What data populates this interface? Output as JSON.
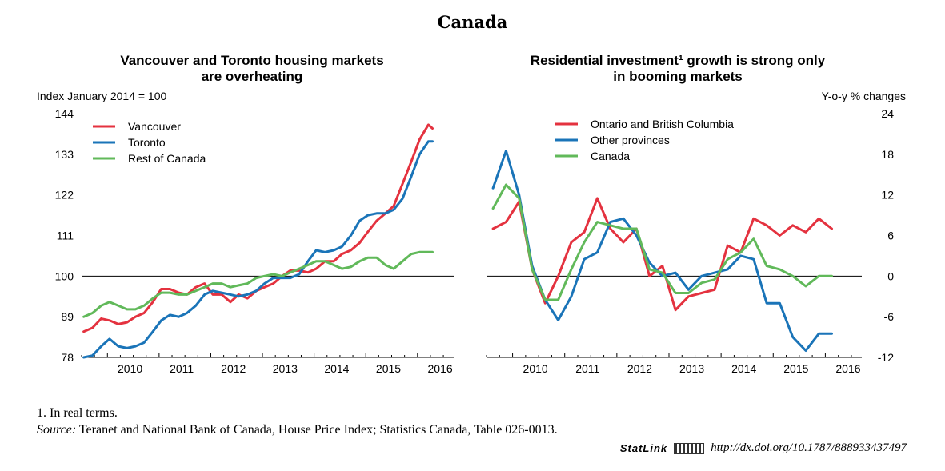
{
  "title": "Canada",
  "footnote": "1. In real terms.",
  "source": {
    "label": "Source:",
    "text": "Teranet and National Bank of Canada, House Price Index; Statistics Canada, Table 026-0013."
  },
  "statlink": {
    "brand": "StatLink",
    "url": "http://dx.doi.org/10.1787/888933437497"
  },
  "colors": {
    "red": "#e4323f",
    "blue": "#1a74b8",
    "green": "#61b95a"
  },
  "chart_data": [
    {
      "type": "line",
      "title_line1": "Vancouver and Toronto housing markets",
      "title_line2": "are overheating",
      "ylabel": "Index January 2014 = 100",
      "ylim": [
        78,
        144
      ],
      "yticks": [
        78,
        89,
        100,
        111,
        122,
        133,
        144
      ],
      "reference_line": 100,
      "xlim": [
        2009.5,
        2016.7
      ],
      "x_tick_labels": [
        "2010",
        "2011",
        "2012",
        "2013",
        "2014",
        "2015",
        "2016"
      ],
      "x_tick_values": [
        2010,
        2011,
        2012,
        2013,
        2014,
        2015,
        2016
      ],
      "legend_position": "top-left",
      "series": [
        {
          "name": "Vancouver",
          "color_key": "red",
          "x": [
            2009.54,
            2009.71,
            2009.88,
            2010.04,
            2010.21,
            2010.38,
            2010.54,
            2010.71,
            2010.88,
            2011.04,
            2011.21,
            2011.38,
            2011.54,
            2011.71,
            2011.88,
            2012.04,
            2012.21,
            2012.38,
            2012.54,
            2012.71,
            2012.88,
            2013.04,
            2013.21,
            2013.38,
            2013.54,
            2013.71,
            2013.88,
            2014.04,
            2014.21,
            2014.38,
            2014.54,
            2014.71,
            2014.88,
            2015.04,
            2015.21,
            2015.38,
            2015.54,
            2015.71,
            2015.88,
            2016.04,
            2016.21,
            2016.29
          ],
          "y": [
            85,
            86,
            88.5,
            88,
            87,
            87.5,
            89,
            90,
            93,
            96.5,
            96.5,
            95.5,
            95,
            97,
            98,
            95,
            95,
            93,
            95,
            94,
            96,
            97,
            98,
            100,
            101.5,
            101.5,
            101,
            102,
            104,
            104,
            106,
            107,
            109,
            112,
            115,
            117,
            119,
            125,
            131,
            137,
            141,
            140
          ]
        },
        {
          "name": "Toronto",
          "color_key": "blue",
          "x": [
            2009.54,
            2009.71,
            2009.88,
            2010.04,
            2010.21,
            2010.38,
            2010.54,
            2010.71,
            2010.88,
            2011.04,
            2011.21,
            2011.38,
            2011.54,
            2011.71,
            2011.88,
            2012.04,
            2012.21,
            2012.38,
            2012.54,
            2012.71,
            2012.88,
            2013.04,
            2013.21,
            2013.38,
            2013.54,
            2013.71,
            2013.88,
            2014.04,
            2014.21,
            2014.38,
            2014.54,
            2014.71,
            2014.88,
            2015.04,
            2015.21,
            2015.38,
            2015.54,
            2015.71,
            2015.88,
            2016.04,
            2016.21,
            2016.29
          ],
          "y": [
            78,
            78.5,
            81,
            83,
            81,
            80.5,
            81,
            82,
            85,
            88,
            89.5,
            89,
            90,
            92,
            95,
            96,
            95.5,
            95,
            94.5,
            95,
            96,
            98,
            99.5,
            99.5,
            99.5,
            100.5,
            104,
            107,
            106.5,
            107,
            108,
            111,
            115,
            116.5,
            117,
            117,
            118,
            121,
            127,
            133,
            136.5,
            136.5
          ]
        },
        {
          "name": "Rest of Canada",
          "color_key": "green",
          "x": [
            2009.54,
            2009.71,
            2009.88,
            2010.04,
            2010.21,
            2010.38,
            2010.54,
            2010.71,
            2010.88,
            2011.04,
            2011.21,
            2011.38,
            2011.54,
            2011.71,
            2011.88,
            2012.04,
            2012.21,
            2012.38,
            2012.54,
            2012.71,
            2012.88,
            2013.04,
            2013.21,
            2013.38,
            2013.54,
            2013.71,
            2013.88,
            2014.04,
            2014.21,
            2014.38,
            2014.54,
            2014.71,
            2014.88,
            2015.04,
            2015.21,
            2015.38,
            2015.54,
            2015.71,
            2015.88,
            2016.04,
            2016.21,
            2016.29
          ],
          "y": [
            89,
            90,
            92,
            93,
            92,
            91,
            91,
            92,
            94,
            95.5,
            95.5,
            95,
            95,
            96,
            97,
            98,
            98,
            97,
            97.5,
            98,
            99.5,
            100,
            100.5,
            100,
            101,
            102,
            103,
            104,
            104,
            103,
            102,
            102.5,
            104,
            105,
            105,
            103,
            102,
            104,
            106,
            106.5,
            106.5,
            106.5
          ]
        }
      ]
    },
    {
      "type": "line",
      "title_line1": "Residential investment¹ growth is strong only",
      "title_line2": "in booming markets",
      "ylabel": "Y-o-y % changes",
      "ylim": [
        -12,
        24
      ],
      "yticks": [
        -12,
        -6,
        0,
        6,
        12,
        18,
        24
      ],
      "reference_line": 0,
      "xlim": [
        2009.5,
        2016.7
      ],
      "x_tick_labels": [
        "2010",
        "2011",
        "2012",
        "2013",
        "2014",
        "2015",
        "2016"
      ],
      "x_tick_values": [
        2010,
        2011,
        2012,
        2013,
        2014,
        2015,
        2016
      ],
      "legend_position": "top-left",
      "series": [
        {
          "name": "Ontario and British Columbia",
          "color_key": "red",
          "x": [
            2009.625,
            2009.875,
            2010.125,
            2010.375,
            2010.625,
            2010.875,
            2011.125,
            2011.375,
            2011.625,
            2011.875,
            2012.125,
            2012.375,
            2012.625,
            2012.875,
            2013.125,
            2013.375,
            2013.625,
            2013.875,
            2014.125,
            2014.375,
            2014.625,
            2014.875,
            2015.125,
            2015.375,
            2015.625,
            2015.875,
            2016.125
          ],
          "y": [
            7,
            8,
            11,
            1,
            -4,
            0,
            5,
            6.5,
            11.5,
            7,
            5,
            7,
            0,
            1.5,
            -5,
            -3,
            -2.5,
            -2,
            4.5,
            3.5,
            8.5,
            7.5,
            6,
            7.5,
            6.5,
            8.5,
            7
          ]
        },
        {
          "name": "Other provinces",
          "color_key": "blue",
          "x": [
            2009.625,
            2009.875,
            2010.125,
            2010.375,
            2010.625,
            2010.875,
            2011.125,
            2011.375,
            2011.625,
            2011.875,
            2012.125,
            2012.375,
            2012.625,
            2012.875,
            2013.125,
            2013.375,
            2013.625,
            2013.875,
            2014.125,
            2014.375,
            2014.625,
            2014.875,
            2015.125,
            2015.375,
            2015.625,
            2015.875,
            2016.125
          ],
          "y": [
            13,
            18.5,
            12,
            1.5,
            -3.5,
            -6.5,
            -3,
            2.5,
            3.5,
            8,
            8.5,
            6,
            2,
            0,
            0.5,
            -2,
            0,
            0.5,
            1,
            3,
            2.5,
            -4,
            -4,
            -9,
            -11,
            -8.5,
            -8.5
          ]
        },
        {
          "name": "Canada",
          "color_key": "green",
          "x": [
            2009.625,
            2009.875,
            2010.125,
            2010.375,
            2010.625,
            2010.875,
            2011.125,
            2011.375,
            2011.625,
            2011.875,
            2012.125,
            2012.375,
            2012.625,
            2012.875,
            2013.125,
            2013.375,
            2013.625,
            2013.875,
            2014.125,
            2014.375,
            2014.625,
            2014.875,
            2015.125,
            2015.375,
            2015.625,
            2015.875,
            2016.125
          ],
          "y": [
            10,
            13.5,
            11.5,
            1,
            -3.5,
            -3.5,
            1,
            5,
            8,
            7.5,
            7,
            7,
            1,
            0.5,
            -2.5,
            -2.5,
            -1,
            -0.5,
            2.5,
            3.5,
            5.5,
            1.5,
            1,
            0,
            -1.5,
            0,
            0
          ]
        }
      ]
    }
  ]
}
